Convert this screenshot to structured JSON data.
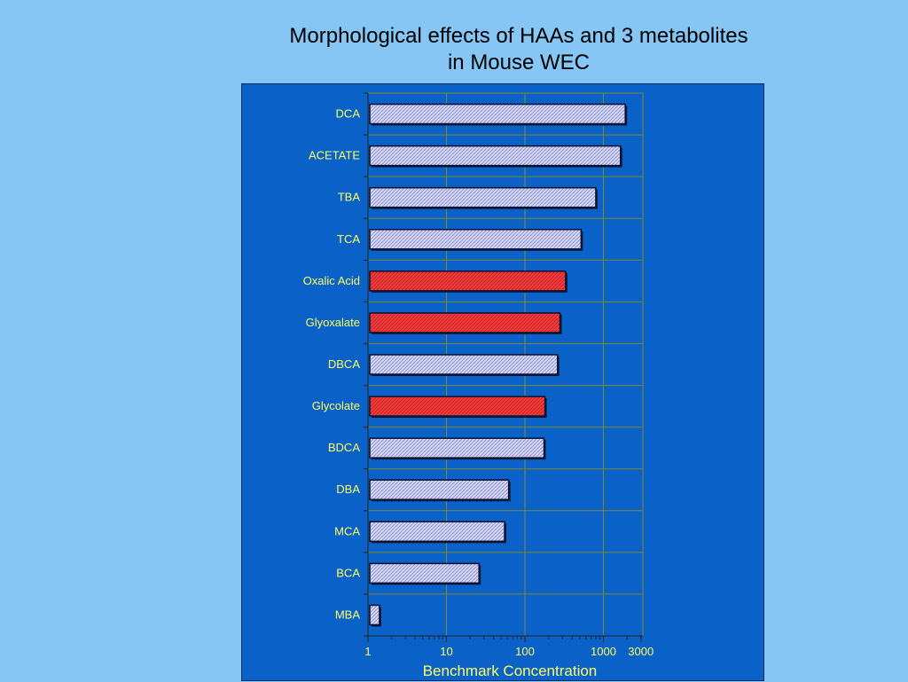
{
  "chart_data": {
    "type": "bar",
    "orientation": "horizontal",
    "title": "Morphological effects of HAAs and 3 metabolites",
    "subtitle": "in Mouse WEC",
    "xlabel": "Benchmark Concentration",
    "ylabel": "",
    "xscale": "log",
    "xlim": [
      1,
      3000
    ],
    "xticks": [
      1,
      10,
      100,
      1000,
      3000
    ],
    "xtick_labels": [
      "1",
      "10",
      "100",
      "1000",
      "3000"
    ],
    "grid": true,
    "categories": [
      "DCA",
      "ACETATE",
      "TBA",
      "TCA",
      "Oxalic Acid",
      "Glyoxalate",
      "DBCA",
      "Glycolate",
      "BDCA",
      "DBA",
      "MCA",
      "BCA",
      "MBA"
    ],
    "values": [
      1900,
      1650,
      800,
      520,
      330,
      280,
      260,
      180,
      175,
      62,
      55,
      26,
      1.4
    ],
    "highlighted": [
      "Oxalic Acid",
      "Glyoxalate",
      "Glycolate"
    ],
    "colors": {
      "panel": "#0a62c8",
      "bar_default": "#d4d6f2",
      "bar_highlight": "#f23c3c",
      "grid": "#7d8a2c",
      "label": "#ffff66"
    }
  }
}
